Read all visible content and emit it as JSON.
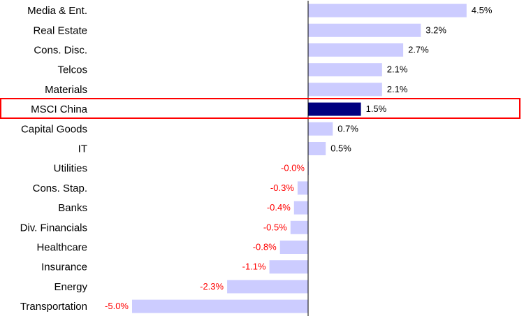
{
  "chart_data": {
    "type": "bar",
    "orientation": "horizontal",
    "title": "",
    "xlabel": "",
    "ylabel": "",
    "categories": [
      "Media & Ent.",
      "Real Estate",
      "Cons. Disc.",
      "Telcos",
      "Materials",
      "MSCI China",
      "Capital Goods",
      "IT",
      "Utilities",
      "Cons. Stap.",
      "Banks",
      "Div. Financials",
      "Healthcare",
      "Insurance",
      "Energy",
      "Transportation"
    ],
    "values": [
      4.5,
      3.2,
      2.7,
      2.1,
      2.1,
      1.5,
      0.7,
      0.5,
      -0.0,
      -0.3,
      -0.4,
      -0.5,
      -0.8,
      -1.1,
      -2.3,
      -5.0
    ],
    "value_labels": [
      "4.5%",
      "3.2%",
      "2.7%",
      "2.1%",
      "2.1%",
      "1.5%",
      "0.7%",
      "0.5%",
      "-0.0%",
      "-0.3%",
      "-0.4%",
      "-0.5%",
      "-0.8%",
      "-1.1%",
      "-2.3%",
      "-5.0%"
    ],
    "highlight_category": "MSCI China",
    "xlim": [
      -5.0,
      4.5
    ],
    "grid": false,
    "legend": "none",
    "colors": {
      "bar": "#ccccff",
      "highlight_bar": "#000080",
      "positive_label": "#000000",
      "negative_label": "#ff0000",
      "highlight_box": "#ff0000",
      "axis": "#000000"
    }
  }
}
